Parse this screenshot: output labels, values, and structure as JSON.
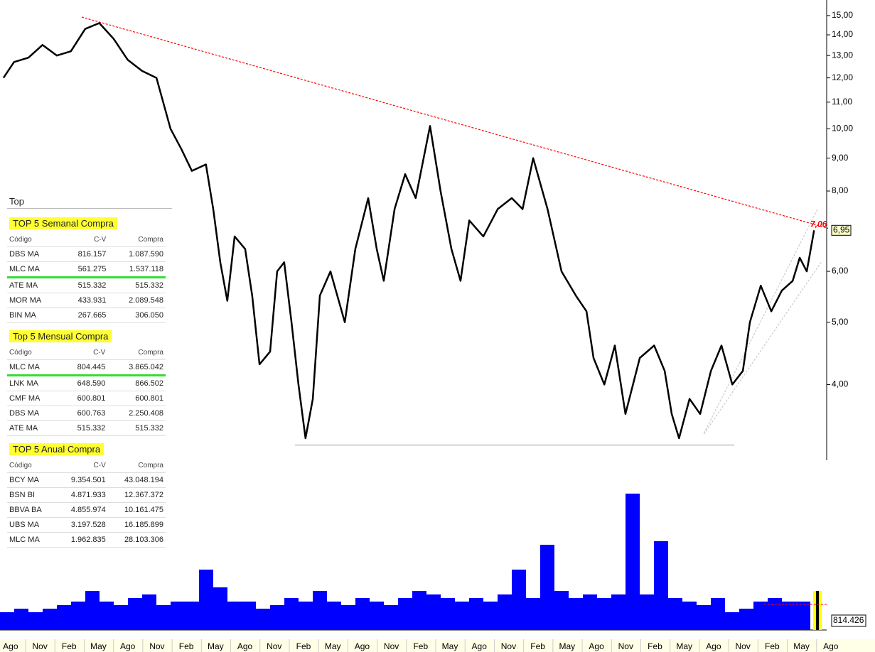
{
  "sidebar": {
    "title": "Top",
    "tables": [
      {
        "title": "TOP 5 Semanal Compra",
        "columns": [
          "Código",
          "C-V",
          "Compra"
        ],
        "highlight_row": 1,
        "rows": [
          [
            "DBS MA",
            "816.157",
            "1.087.590"
          ],
          [
            "MLC MA",
            "561.275",
            "1.537.118"
          ],
          [
            "ATE MA",
            "515.332",
            "515.332"
          ],
          [
            "MOR MA",
            "433.931",
            "2.089.548"
          ],
          [
            "BIN MA",
            "267.665",
            "306.050"
          ]
        ]
      },
      {
        "title": "Top 5 Mensual Compra",
        "columns": [
          "Código",
          "C-V",
          "Compra"
        ],
        "highlight_row": 0,
        "rows": [
          [
            "MLC MA",
            "804.445",
            "3.865.042"
          ],
          [
            "LNK MA",
            "648.590",
            "866.502"
          ],
          [
            "CMF MA",
            "600.801",
            "600.801"
          ],
          [
            "DBS MA",
            "600.763",
            "2.250.408"
          ],
          [
            "ATE MA",
            "515.332",
            "515.332"
          ]
        ]
      },
      {
        "title": "TOP 5 Anual Compra",
        "columns": [
          "Código",
          "C-V",
          "Compra"
        ],
        "rows": [
          [
            "BCY MA",
            "9.354.501",
            "43.048.194"
          ],
          [
            "BSN BI",
            "4.871.933",
            "12.367.372"
          ],
          [
            "BBVA BA",
            "4.855.974",
            "10.161.475"
          ],
          [
            "UBS MA",
            "3.197.528",
            "16.185.899"
          ],
          [
            "MLC MA",
            "1.962.835",
            "28.103.306"
          ]
        ]
      }
    ]
  },
  "chart_data": {
    "type": "line",
    "log_scale": true,
    "categories": [
      "Ago",
      "Nov",
      "Feb",
      "May",
      "Ago",
      "Nov",
      "Feb",
      "May",
      "Ago",
      "Nov",
      "Feb",
      "May",
      "Ago",
      "Nov",
      "Feb",
      "May",
      "Ago",
      "Nov",
      "Feb",
      "May",
      "Ago",
      "Nov",
      "Feb",
      "May",
      "Ago",
      "Nov",
      "Feb",
      "May",
      "Ago"
    ],
    "xlim": [
      -0.36,
      27.86
    ],
    "ylim": [
      3.05,
      15.86
    ],
    "yticks": [
      {
        "value": 4,
        "label": "4,00"
      },
      {
        "value": 5,
        "label": "5,00"
      },
      {
        "value": 6,
        "label": "6,00"
      },
      {
        "value": 8,
        "label": "8,00"
      },
      {
        "value": 9,
        "label": "9,00"
      },
      {
        "value": 10,
        "label": "10,00"
      },
      {
        "value": 11,
        "label": "11,00"
      },
      {
        "value": 12,
        "label": "12,00"
      },
      {
        "value": 13,
        "label": "13,00"
      },
      {
        "value": 14,
        "label": "14,00"
      },
      {
        "value": 15,
        "label": "15,00"
      }
    ],
    "series": [
      {
        "color": "#000000",
        "x": [
          -0.24,
          0.12,
          0.61,
          1.09,
          1.58,
          2.06,
          2.55,
          3.03,
          3.52,
          4.0,
          4.49,
          4.98,
          5.46,
          5.83,
          6.19,
          6.67,
          6.92,
          7.16,
          7.4,
          7.65,
          8.01,
          8.25,
          8.5,
          8.86,
          9.1,
          9.34,
          9.59,
          9.83,
          10.07,
          10.32,
          10.56,
          10.92,
          11.41,
          11.77,
          12.21,
          12.5,
          12.74,
          13.11,
          13.47,
          13.83,
          14.32,
          14.68,
          15.05,
          15.36,
          15.66,
          16.14,
          16.63,
          17.11,
          17.48,
          17.84,
          18.33,
          18.81,
          19.3,
          19.66,
          19.9,
          20.27,
          20.63,
          20.99,
          21.48,
          21.97,
          22.33,
          22.57,
          22.82,
          23.18,
          23.54,
          23.91,
          24.27,
          24.64,
          25.0,
          25.24,
          25.61,
          25.97,
          26.33,
          26.7,
          26.94,
          27.18,
          27.43
        ],
        "values": [
          12.0,
          12.7,
          12.9,
          13.5,
          13.0,
          13.2,
          14.3,
          14.6,
          13.8,
          12.8,
          12.3,
          12.0,
          10.0,
          9.3,
          8.6,
          8.8,
          7.5,
          6.2,
          5.4,
          6.8,
          6.5,
          5.5,
          4.3,
          4.5,
          6.0,
          6.2,
          5.0,
          4.0,
          3.3,
          3.8,
          5.5,
          6.0,
          5.0,
          6.5,
          7.8,
          6.5,
          5.8,
          7.5,
          8.5,
          7.8,
          10.1,
          8.0,
          6.5,
          5.8,
          7.2,
          6.8,
          7.5,
          7.8,
          7.5,
          9.0,
          7.5,
          6.0,
          5.5,
          5.2,
          4.4,
          4.0,
          4.6,
          3.6,
          4.4,
          4.6,
          4.2,
          3.6,
          3.3,
          3.8,
          3.6,
          4.2,
          4.6,
          4.0,
          4.2,
          5.0,
          5.7,
          5.2,
          5.6,
          5.8,
          6.3,
          6.0,
          6.95
        ]
      }
    ],
    "trend_lines": [
      {
        "color": "#ff0000",
        "dash": true,
        "x": [
          2.43,
          27.91
        ],
        "values": [
          14.92,
          7.0
        ]
      },
      {
        "color": "#aaaaaa",
        "x": [
          9.71,
          24.71
        ],
        "values": [
          3.22,
          3.22
        ]
      },
      {
        "color": "#cccccc",
        "dash": true,
        "x": [
          23.67,
          27.55
        ],
        "values": [
          3.36,
          7.5
        ]
      },
      {
        "color": "#cccccc",
        "dash": true,
        "x": [
          23.67,
          27.67
        ],
        "values": [
          3.35,
          6.2
        ]
      }
    ],
    "annotation": {
      "value": 7.06,
      "label": "7,06",
      "color": "#ff0000"
    },
    "last_price": {
      "value": 6.95,
      "label": "6,95"
    },
    "volume": {
      "type": "bar",
      "color": "#0000ff",
      "highlight_color": "#ffff00",
      "ylim": [
        0,
        12000000
      ],
      "values": [
        1562500,
        1875000,
        1562500,
        1875000,
        2187500,
        2500000,
        3437500,
        2500000,
        2187500,
        2812500,
        3125000,
        2187500,
        2500000,
        2500000,
        5312500,
        3750000,
        2500000,
        2500000,
        1875000,
        2187500,
        2812500,
        2500000,
        3437500,
        2500000,
        2187500,
        2812500,
        2500000,
        2187500,
        2812500,
        3437500,
        3125000,
        2812500,
        2500000,
        2812500,
        2500000,
        3125000,
        5312500,
        2812500,
        7500000,
        3437500,
        2812500,
        3125000,
        2812500,
        3125000,
        12000000,
        3125000,
        7812500,
        2812500,
        2500000,
        2187500,
        2812500,
        1562500,
        1875000,
        2500000,
        2812500,
        2500000,
        2500000,
        3437500
      ],
      "reference_value": 2250000,
      "last_label": {
        "value": 814426,
        "label": "814.426"
      }
    }
  }
}
